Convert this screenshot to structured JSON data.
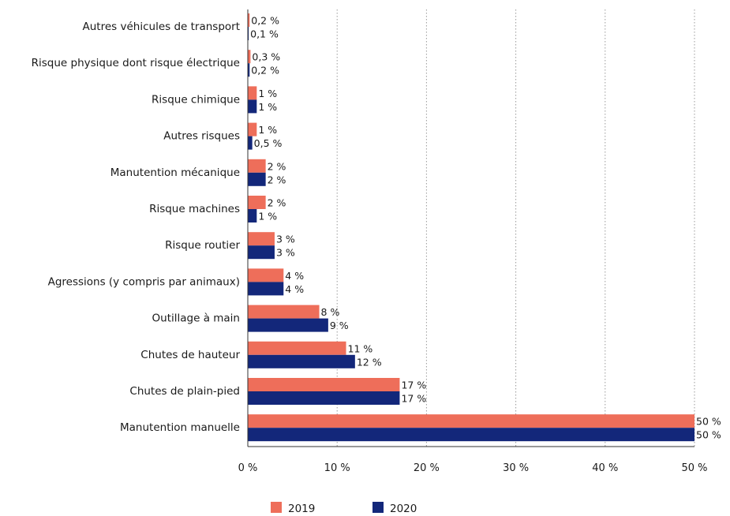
{
  "colors": {
    "series_2019": "#ee6e5a",
    "series_2020": "#13277a",
    "grid": "#9a9a9a",
    "axis": "#333333"
  },
  "chart_data": {
    "type": "bar",
    "orientation": "horizontal",
    "categories": [
      "Autres véhicules de transport",
      "Risque physique dont risque électrique",
      "Risque chimique",
      "Autres risques",
      "Manutention mécanique",
      "Risque machines",
      "Risque routier",
      "Agressions (y compris par animaux)",
      "Outillage à main",
      "Chutes de hauteur",
      "Chutes de plain-pied",
      "Manutention manuelle"
    ],
    "series": [
      {
        "name": "2019",
        "values": [
          0.2,
          0.3,
          1,
          1,
          2,
          2,
          3,
          4,
          8,
          11,
          17,
          50
        ],
        "labels": [
          "0,2 %",
          "0,3 %",
          "1 %",
          "1 %",
          "2 %",
          "2 %",
          "3 %",
          "4 %",
          "8 %",
          "11 %",
          "17 %",
          "50 %"
        ]
      },
      {
        "name": "2020",
        "values": [
          0.1,
          0.2,
          1,
          0.5,
          2,
          1,
          3,
          4,
          9,
          12,
          17,
          50
        ],
        "labels": [
          "0,1 %",
          "0,2 %",
          "1 %",
          "0,5 %",
          "2 %",
          "1 %",
          "3 %",
          "4 %",
          "9 %",
          "12 %",
          "17 %",
          "50 %"
        ]
      }
    ],
    "xlim": [
      0,
      50
    ],
    "xticks": [
      0,
      10,
      20,
      30,
      40,
      50
    ],
    "xtick_labels": [
      "0 %",
      "10 %",
      "20 %",
      "30 %",
      "40 %",
      "50 %"
    ],
    "grid": "vertical dotted",
    "legend": {
      "position": "bottom-center",
      "entries": [
        "2019",
        "2020"
      ]
    }
  }
}
